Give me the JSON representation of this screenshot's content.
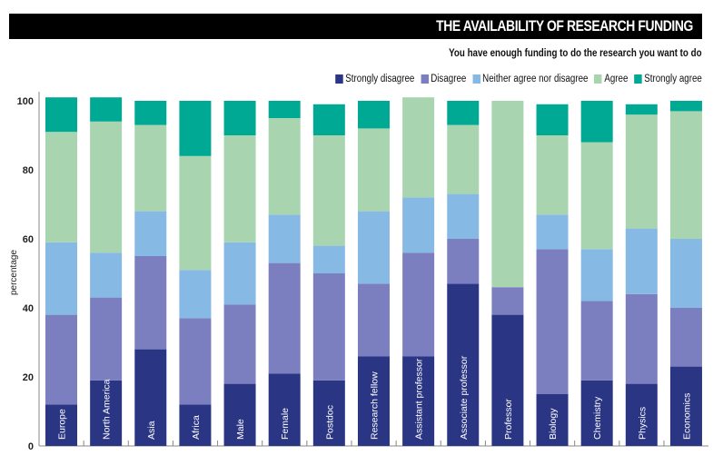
{
  "chart_data": {
    "type": "bar",
    "stacked": true,
    "title": "THE AVAILABILITY OF RESEARCH FUNDING",
    "subtitle": "You have enough funding to do the research you want to do",
    "xlabel": "",
    "ylabel": "percentage",
    "ylim": [
      0,
      100
    ],
    "yticks": [
      0,
      20,
      40,
      60,
      80,
      100
    ],
    "grid": false,
    "legend_position": "top-right",
    "categories": [
      "Europe",
      "North America",
      "Asia",
      "Africa",
      "Male",
      "Female",
      "Postdoc",
      "Research fellow",
      "Assistant professor",
      "Associate professor",
      "Professor",
      "Biology",
      "Chemistry",
      "Physics",
      "Economics"
    ],
    "series": [
      {
        "name": "Strongly disagree",
        "color": "#2a3584",
        "values": [
          12,
          19,
          28,
          12,
          18,
          21,
          19,
          26,
          26,
          47,
          38,
          15,
          19,
          18,
          23
        ]
      },
      {
        "name": "Disagree",
        "color": "#7b7fbf",
        "values": [
          26,
          24,
          27,
          25,
          23,
          32,
          31,
          21,
          30,
          13,
          8,
          42,
          23,
          26,
          17
        ]
      },
      {
        "name": "Neither agree nor disagree",
        "color": "#86b9e4",
        "values": [
          21,
          13,
          13,
          14,
          18,
          14,
          8,
          21,
          16,
          13,
          0,
          10,
          15,
          19,
          20
        ]
      },
      {
        "name": "Agree",
        "color": "#a8d5b0",
        "values": [
          32,
          38,
          25,
          33,
          31,
          28,
          32,
          24,
          29,
          20,
          54,
          23,
          31,
          33,
          37
        ]
      },
      {
        "name": "Strongly agree",
        "color": "#00a994",
        "values": [
          10,
          7,
          7,
          16,
          10,
          5,
          9,
          8,
          0,
          7,
          0,
          9,
          12,
          3,
          3
        ]
      }
    ]
  }
}
